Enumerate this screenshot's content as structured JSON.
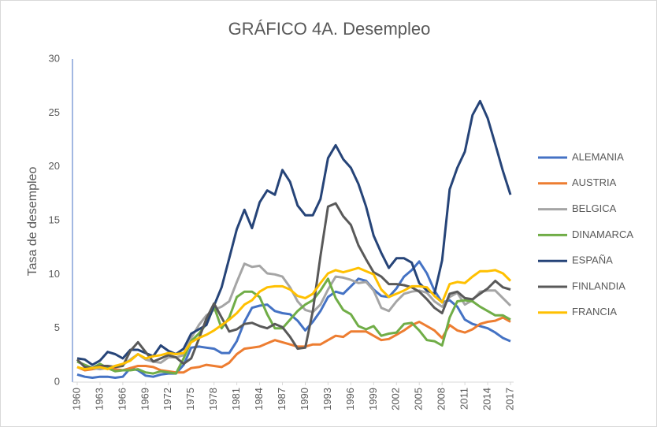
{
  "chart_data": {
    "type": "line",
    "title": "GRÁFICO 4A. Desempleo",
    "y_label": "Tasa de desempleo",
    "x": [
      1960,
      1961,
      1962,
      1963,
      1964,
      1965,
      1966,
      1967,
      1968,
      1969,
      1970,
      1971,
      1972,
      1973,
      1974,
      1975,
      1976,
      1977,
      1978,
      1979,
      1980,
      1981,
      1982,
      1983,
      1984,
      1985,
      1986,
      1987,
      1988,
      1989,
      1990,
      1991,
      1992,
      1993,
      1994,
      1995,
      1996,
      1997,
      1998,
      1999,
      2000,
      2001,
      2002,
      2003,
      2004,
      2005,
      2006,
      2007,
      2008,
      2009,
      2010,
      2011,
      2012,
      2013,
      2014,
      2015,
      2016,
      2017
    ],
    "xlim": [
      1960,
      2017
    ],
    "xticks": [
      1960,
      1963,
      1966,
      1969,
      1972,
      1975,
      1978,
      1981,
      1984,
      1987,
      1990,
      1993,
      1996,
      1999,
      2002,
      2005,
      2008,
      2011,
      2014,
      2017
    ],
    "ylim": [
      0,
      30
    ],
    "yticks": [
      0,
      5,
      10,
      15,
      20,
      25,
      30
    ],
    "grid": false,
    "legend": "right",
    "series": [
      {
        "name": "ALEMANIA",
        "color": "#4472c4",
        "values": [
          0.7,
          0.5,
          0.4,
          0.5,
          0.5,
          0.4,
          0.5,
          1.3,
          1.1,
          0.6,
          0.5,
          0.7,
          0.8,
          0.8,
          1.6,
          3.2,
          3.3,
          3.2,
          3.1,
          2.7,
          2.7,
          3.8,
          5.6,
          6.9,
          7.1,
          7.2,
          6.6,
          6.4,
          6.3,
          5.7,
          4.8,
          5.6,
          6.6,
          7.9,
          8.4,
          8.2,
          8.9,
          9.6,
          9.4,
          8.6,
          8.0,
          7.9,
          8.7,
          9.8,
          10.4,
          11.2,
          10.1,
          8.5,
          7.4,
          7.6,
          7.0,
          5.8,
          5.4,
          5.2,
          5.0,
          4.6,
          4.1,
          3.8
        ]
      },
      {
        "name": "AUSTRIA",
        "color": "#ed7d31",
        "values": [
          1.4,
          1.1,
          1.2,
          1.3,
          1.4,
          1.2,
          1.1,
          1.3,
          1.5,
          1.5,
          1.4,
          1.1,
          1.0,
          0.9,
          0.9,
          1.3,
          1.4,
          1.6,
          1.5,
          1.4,
          1.8,
          2.6,
          3.1,
          3.2,
          3.3,
          3.6,
          3.9,
          3.7,
          3.5,
          3.3,
          3.3,
          3.5,
          3.5,
          3.9,
          4.3,
          4.2,
          4.7,
          4.7,
          4.7,
          4.3,
          3.9,
          4.0,
          4.4,
          4.8,
          5.3,
          5.6,
          5.2,
          4.8,
          4.1,
          5.3,
          4.8,
          4.6,
          4.9,
          5.4,
          5.6,
          5.7,
          6.0,
          5.6
        ]
      },
      {
        "name": "BELGICA",
        "color": "#a5a5a5",
        "values": [
          1.9,
          1.6,
          1.3,
          1.2,
          1.3,
          1.5,
          1.6,
          2.1,
          2.6,
          2.1,
          1.9,
          1.8,
          2.3,
          2.3,
          2.5,
          4.1,
          5.3,
          6.2,
          6.7,
          7.0,
          7.5,
          9.3,
          11.0,
          10.7,
          10.8,
          10.1,
          10.0,
          9.8,
          8.8,
          7.5,
          6.7,
          6.5,
          7.2,
          8.6,
          9.8,
          9.7,
          9.5,
          9.2,
          9.3,
          8.5,
          6.9,
          6.6,
          7.5,
          8.2,
          8.4,
          8.5,
          8.3,
          7.5,
          7.0,
          7.9,
          8.3,
          7.2,
          7.6,
          8.4,
          8.5,
          8.5,
          7.8,
          7.1
        ]
      },
      {
        "name": "DINAMARCA",
        "color": "#70ad47",
        "values": [
          1.9,
          1.6,
          1.3,
          1.7,
          1.3,
          1.0,
          1.1,
          1.1,
          1.2,
          0.9,
          0.8,
          1.0,
          0.9,
          0.8,
          2.2,
          3.8,
          4.5,
          5.4,
          7.0,
          5.0,
          6.0,
          7.9,
          8.4,
          8.4,
          7.9,
          6.3,
          5.0,
          5.0,
          5.8,
          6.6,
          7.2,
          7.6,
          8.5,
          9.6,
          7.8,
          6.7,
          6.3,
          5.2,
          4.9,
          5.2,
          4.3,
          4.5,
          4.6,
          5.4,
          5.5,
          4.8,
          3.9,
          3.8,
          3.4,
          6.0,
          7.5,
          7.6,
          7.5,
          7.0,
          6.6,
          6.2,
          6.2,
          5.8
        ]
      },
      {
        "name": "ESPAÑA",
        "color": "#264478",
        "values": [
          2.2,
          2.1,
          1.6,
          2.0,
          2.8,
          2.6,
          2.2,
          3.0,
          3.0,
          2.7,
          2.4,
          3.4,
          2.9,
          2.6,
          3.1,
          4.5,
          4.9,
          5.3,
          7.1,
          8.8,
          11.5,
          14.2,
          16.0,
          14.3,
          16.7,
          17.8,
          17.4,
          19.7,
          18.6,
          16.4,
          15.5,
          15.5,
          17.0,
          20.8,
          22.0,
          20.7,
          19.9,
          18.4,
          16.3,
          13.6,
          12.0,
          10.6,
          11.5,
          11.5,
          11.1,
          9.2,
          8.5,
          8.2,
          11.3,
          17.9,
          19.9,
          21.4,
          24.8,
          26.1,
          24.5,
          22.1,
          19.6,
          17.4
        ]
      },
      {
        "name": "FINLANDIA",
        "color": "#595959",
        "values": [
          2.1,
          1.4,
          1.3,
          1.5,
          1.5,
          1.4,
          1.5,
          2.9,
          3.7,
          2.8,
          1.9,
          2.2,
          2.5,
          2.3,
          1.7,
          2.2,
          4.0,
          5.9,
          7.3,
          6.0,
          4.7,
          4.9,
          5.4,
          5.5,
          5.2,
          5.0,
          5.4,
          5.1,
          4.2,
          3.1,
          3.2,
          6.6,
          11.7,
          16.3,
          16.6,
          15.4,
          14.6,
          12.7,
          11.4,
          10.2,
          9.8,
          9.1,
          9.1,
          9.0,
          8.8,
          8.4,
          7.7,
          6.9,
          6.4,
          8.2,
          8.4,
          7.8,
          7.7,
          8.2,
          8.7,
          9.4,
          8.8,
          8.6
        ]
      },
      {
        "name": "FRANCIA",
        "color": "#ffc000",
        "values": [
          1.4,
          1.2,
          1.3,
          1.4,
          1.2,
          1.5,
          1.7,
          2.0,
          2.6,
          2.2,
          2.4,
          2.5,
          2.7,
          2.6,
          2.7,
          3.7,
          4.1,
          4.4,
          4.8,
          5.3,
          5.8,
          6.4,
          7.2,
          7.6,
          8.4,
          8.8,
          8.9,
          8.9,
          8.6,
          8.0,
          7.8,
          8.2,
          9.2,
          10.1,
          10.4,
          10.2,
          10.4,
          10.6,
          10.3,
          10.0,
          8.6,
          7.9,
          8.2,
          8.5,
          8.9,
          8.9,
          8.8,
          8.0,
          7.4,
          9.1,
          9.3,
          9.2,
          9.8,
          10.3,
          10.3,
          10.4,
          10.1,
          9.4
        ]
      }
    ]
  }
}
